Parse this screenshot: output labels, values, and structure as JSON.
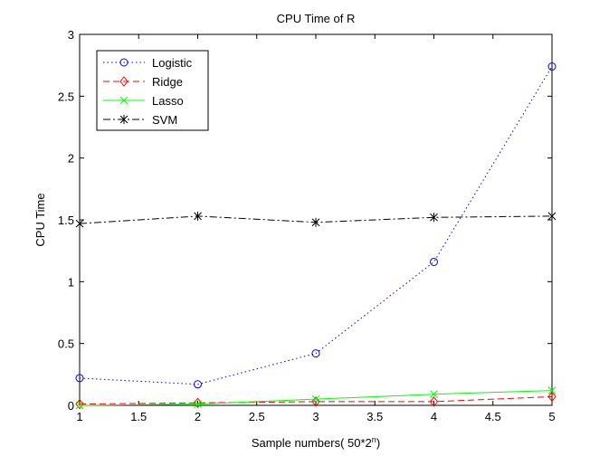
{
  "chart_data": {
    "type": "line",
    "title": "CPU Time of R",
    "xlabel": "Sample numbers( 50*2",
    "xlabel_superscript": "n",
    "xlabel_suffix": ")",
    "ylabel": "CPU Time",
    "xlim": [
      1,
      5
    ],
    "ylim": [
      0,
      3
    ],
    "x_ticks": [
      "1",
      "1.5",
      "2",
      "2.5",
      "3",
      "3.5",
      "4",
      "4.5",
      "5"
    ],
    "y_ticks": [
      "0",
      "0.5",
      "1",
      "1.5",
      "2",
      "2.5",
      "3"
    ],
    "grid": false,
    "legend_position": "top-left",
    "x": [
      1,
      2,
      3,
      4,
      5
    ],
    "series": [
      {
        "name": "Logistic",
        "values": [
          0.22,
          0.17,
          0.42,
          1.16,
          2.74
        ],
        "color": "#0000ff",
        "line": "dotted",
        "marker": "circle"
      },
      {
        "name": "Ridge",
        "values": [
          0.01,
          0.02,
          0.03,
          0.03,
          0.07
        ],
        "color": "#ff0000",
        "line": "dashed",
        "marker": "diamond"
      },
      {
        "name": "Lasso",
        "values": [
          0.0,
          0.01,
          0.05,
          0.09,
          0.12
        ],
        "color": "#00ff00",
        "line": "solid",
        "marker": "x"
      },
      {
        "name": "SVM",
        "values": [
          1.47,
          1.53,
          1.48,
          1.52,
          1.53
        ],
        "color": "#000000",
        "line": "dashdot",
        "marker": "star"
      }
    ]
  }
}
